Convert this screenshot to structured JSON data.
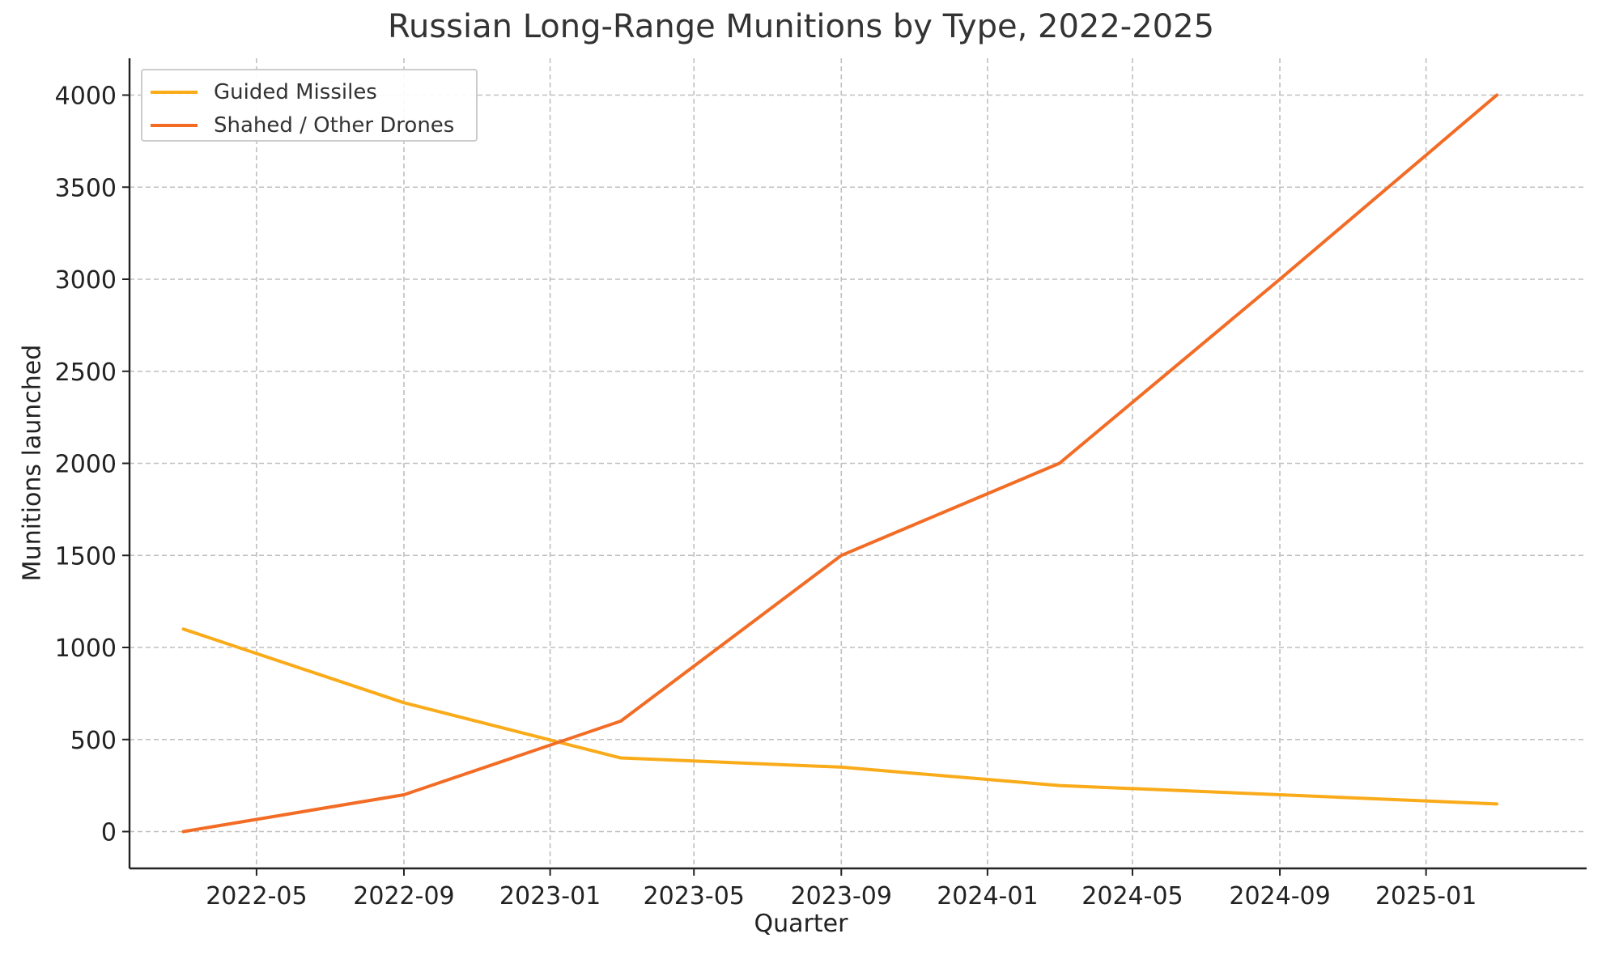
{
  "chart_data": {
    "type": "line",
    "title": "Russian Long-Range Munitions by Type, 2022-2025",
    "xlabel": "Quarter",
    "ylabel": "Munitions launched",
    "x": [
      "2022-03-01",
      "2022-09-01",
      "2023-03-01",
      "2023-09-01",
      "2024-03-01",
      "2024-09-01",
      "2025-03-01"
    ],
    "series": [
      {
        "name": "Guided Missiles",
        "color": "#f9ab1a",
        "values": [
          1100,
          700,
          400,
          350,
          250,
          200,
          150
        ]
      },
      {
        "name": "Shahed / Other Drones",
        "color": "#f26c25",
        "values": [
          0,
          200,
          600,
          1500,
          2000,
          3000,
          4000
        ]
      }
    ],
    "x_ticks": [
      "2022-05",
      "2022-09",
      "2023-01",
      "2023-05",
      "2023-09",
      "2024-01",
      "2024-05",
      "2024-09",
      "2025-01"
    ],
    "y_ticks": [
      0,
      500,
      1000,
      1500,
      2000,
      2500,
      3000,
      3500,
      4000
    ],
    "xlim": [
      "2022-01-15",
      "2025-05-15"
    ],
    "ylim": [
      -200,
      4200
    ],
    "grid": true,
    "legend_position": "top-left"
  }
}
